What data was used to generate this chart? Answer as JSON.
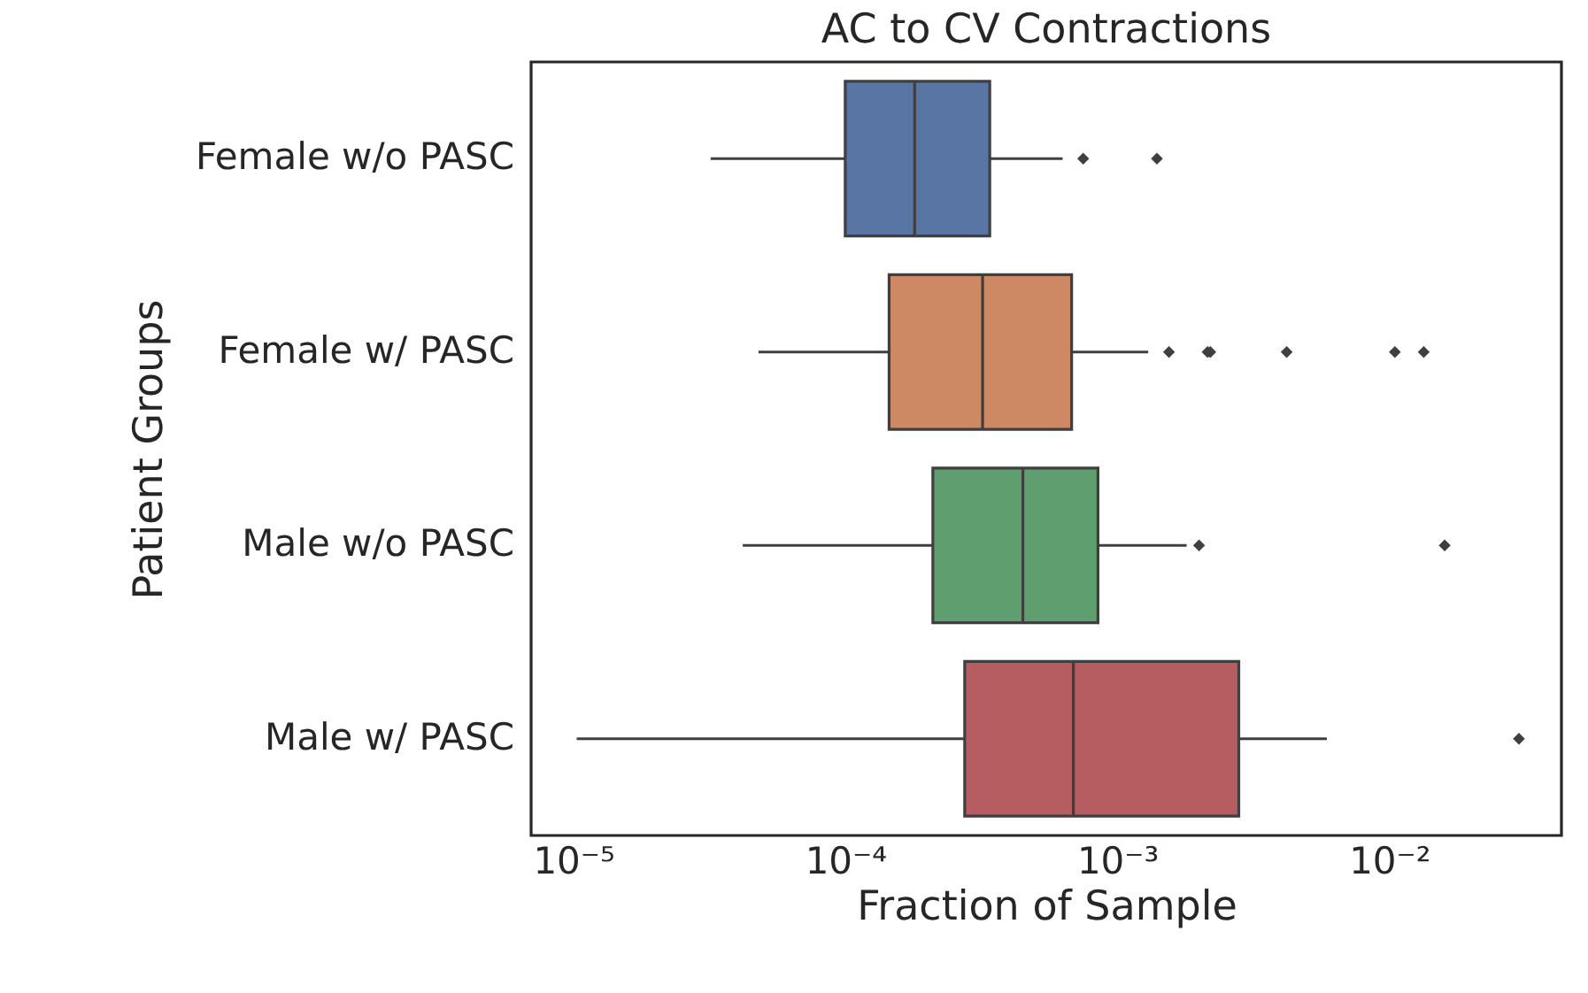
{
  "chart_data": {
    "type": "box",
    "title": "AC to CV Contractions",
    "xlabel": "Fraction of Sample",
    "ylabel": "Patient Groups",
    "orientation": "horizontal",
    "log": "x",
    "grid": false,
    "marker": "diamond",
    "categories": [
      "Female w/o PASC",
      "Female w/ PASC",
      "Male w/o PASC",
      "Male w/ PASC"
    ],
    "colors": [
      "#5975a4",
      "#cc8963",
      "#5f9e6e",
      "#b55d60"
    ],
    "boxes": [
      {
        "low": 3.2e-05,
        "q1": 0.0001,
        "median": 0.00018,
        "q3": 0.00034,
        "high": 0.00063,
        "outliers": [
          0.00075,
          0.0014
        ]
      },
      {
        "low": 4.8e-05,
        "q1": 0.000145,
        "median": 0.00032,
        "q3": 0.00068,
        "high": 0.0013,
        "outliers": [
          0.00155,
          0.00215,
          0.0022,
          0.0042,
          0.0105,
          0.0134
        ]
      },
      {
        "low": 4.2e-05,
        "q1": 0.00021,
        "median": 0.00045,
        "q3": 0.00085,
        "high": 0.0018,
        "outliers": [
          0.002,
          0.016
        ]
      },
      {
        "low": 1.03e-05,
        "q1": 0.000275,
        "median": 0.00069,
        "q3": 0.0028,
        "high": 0.0059,
        "outliers": [
          0.03
        ]
      }
    ],
    "xlim": [
      7e-06,
      0.043
    ],
    "xticks": [
      {
        "value": 1e-05,
        "label": "10⁻⁵"
      },
      {
        "value": 0.0001,
        "label": "10⁻⁴"
      },
      {
        "value": 0.001,
        "label": "10⁻³"
      },
      {
        "value": 0.01,
        "label": "10⁻²"
      }
    ]
  }
}
